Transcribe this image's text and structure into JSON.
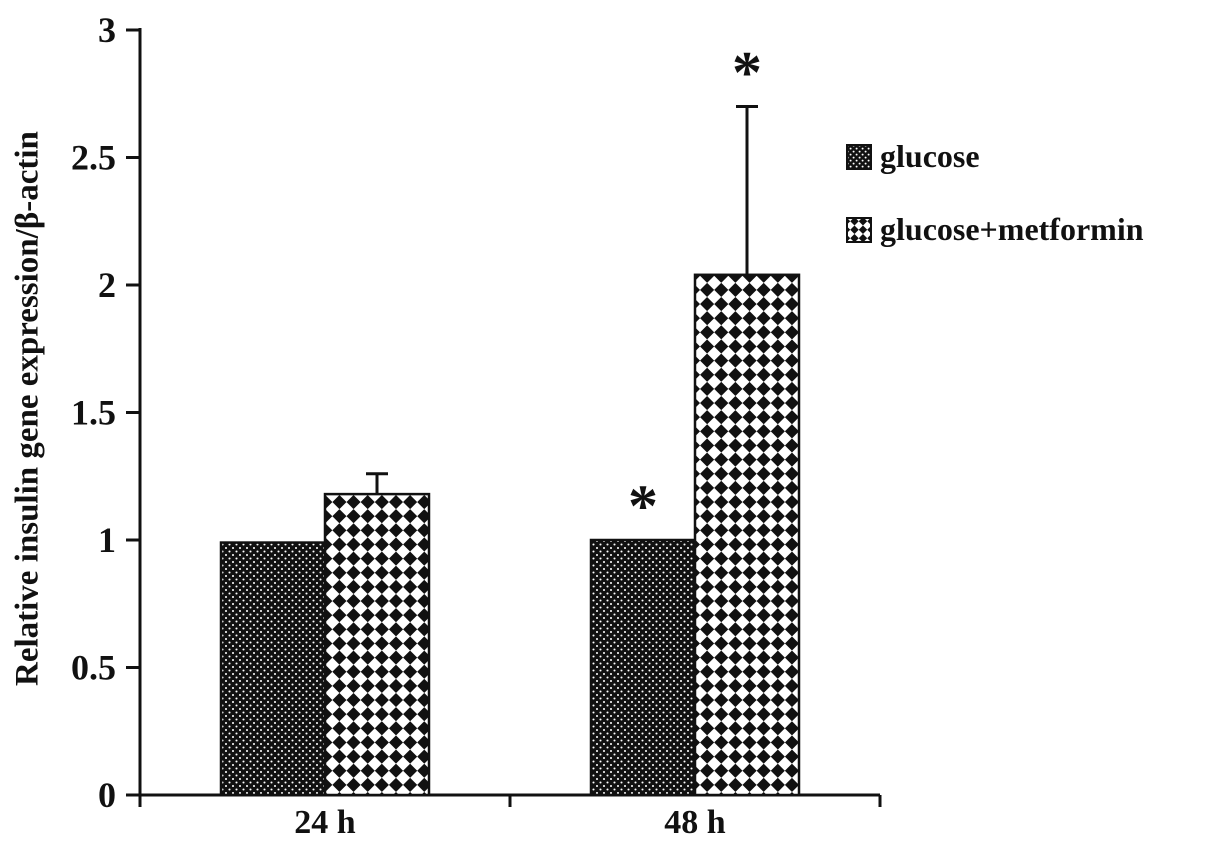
{
  "chart_data": {
    "type": "bar",
    "title": "",
    "xlabel": "",
    "ylabel": "Relative insulin gene expression/β-actin",
    "categories": [
      "24 h",
      "48 h"
    ],
    "series": [
      {
        "name": "glucose",
        "pattern": "dots",
        "values": [
          0.99,
          1.0
        ],
        "errors": [
          0,
          0
        ]
      },
      {
        "name": "glucose+metformin",
        "pattern": "diamonds",
        "values": [
          1.18,
          2.04
        ],
        "errors": [
          0.08,
          0.66
        ]
      }
    ],
    "ylim": [
      0,
      3
    ],
    "yticks": [
      0,
      0.5,
      1,
      1.5,
      2,
      2.5,
      3
    ],
    "grid": false,
    "legend_position": "right",
    "annotations": [
      {
        "text": "*",
        "category": "48 h",
        "series": "glucose",
        "placement": "above-bar"
      },
      {
        "text": "*",
        "category": "48 h",
        "series": "glucose+metformin",
        "placement": "above-error-bar"
      }
    ]
  },
  "colors": {
    "ink": "#111111",
    "background": "#ffffff"
  }
}
